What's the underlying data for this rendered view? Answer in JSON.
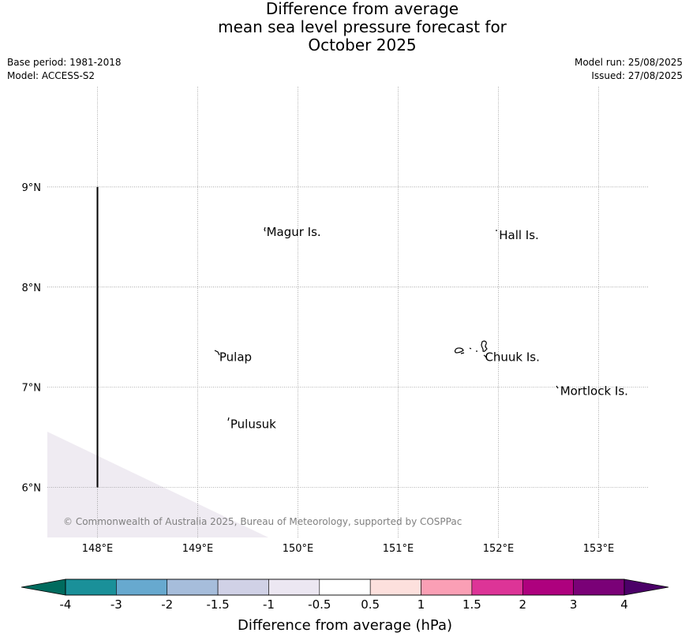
{
  "title": {
    "line1": "Difference from average",
    "line2": "mean sea level pressure forecast for",
    "line3": "October 2025"
  },
  "meta": {
    "base_period": "Base period: 1981-2018",
    "model": "Model: ACCESS-S2",
    "model_run": "Model run: 25/08/2025",
    "issued": "Issued: 27/08/2025"
  },
  "map": {
    "lon_range": [
      147.5,
      153.5
    ],
    "lat_range": [
      5.5,
      10.0
    ],
    "lon_ticks": [
      {
        "value": 148,
        "label": "148°E"
      },
      {
        "value": 149,
        "label": "149°E"
      },
      {
        "value": 150,
        "label": "150°E"
      },
      {
        "value": 151,
        "label": "151°E"
      },
      {
        "value": 152,
        "label": "152°E"
      },
      {
        "value": 153,
        "label": "153°E"
      }
    ],
    "lat_ticks": [
      {
        "value": 9,
        "label": "9°N"
      },
      {
        "value": 8,
        "label": "8°N"
      },
      {
        "value": 7,
        "label": "7°N"
      },
      {
        "value": 6,
        "label": "6°N"
      }
    ],
    "gridlines": "dotted",
    "places": [
      {
        "name": "Magur Is.",
        "lon": 149.67,
        "lat": 8.55
      },
      {
        "name": "Hall Is.",
        "lon": 151.99,
        "lat": 8.52
      },
      {
        "name": "Pulap",
        "lon": 149.2,
        "lat": 7.3
      },
      {
        "name": "Chuuk Is.",
        "lon": 151.85,
        "lat": 7.3
      },
      {
        "name": "Mortlock Is.",
        "lon": 152.6,
        "lat": 6.96
      },
      {
        "name": "Pulusuk",
        "lon": 149.31,
        "lat": 6.63
      }
    ],
    "boundary_line": {
      "lon": 148.0,
      "lat_from": 6.0,
      "lat_to": 9.0
    },
    "shaded_region_color": "#efebf2",
    "copyright": "© Commonwealth of Australia 2025, Bureau of Meteorology, supported by COSPPac"
  },
  "colorbar": {
    "label": "Difference from average (hPa)",
    "ticks": [
      "-4",
      "-3",
      "-2",
      "-1.5",
      "-1",
      "-0.5",
      "0.5",
      "1",
      "1.5",
      "2",
      "3",
      "4"
    ],
    "under_color": "#006b5e",
    "over_color": "#4b0068",
    "colors": [
      "#1a9099",
      "#67a9cf",
      "#a6bddb",
      "#d0d1e6",
      "#ece7f2",
      "#ffffff",
      "#fde0dd",
      "#fa9fb5",
      "#dd3497",
      "#ae017e",
      "#7a0177"
    ]
  }
}
